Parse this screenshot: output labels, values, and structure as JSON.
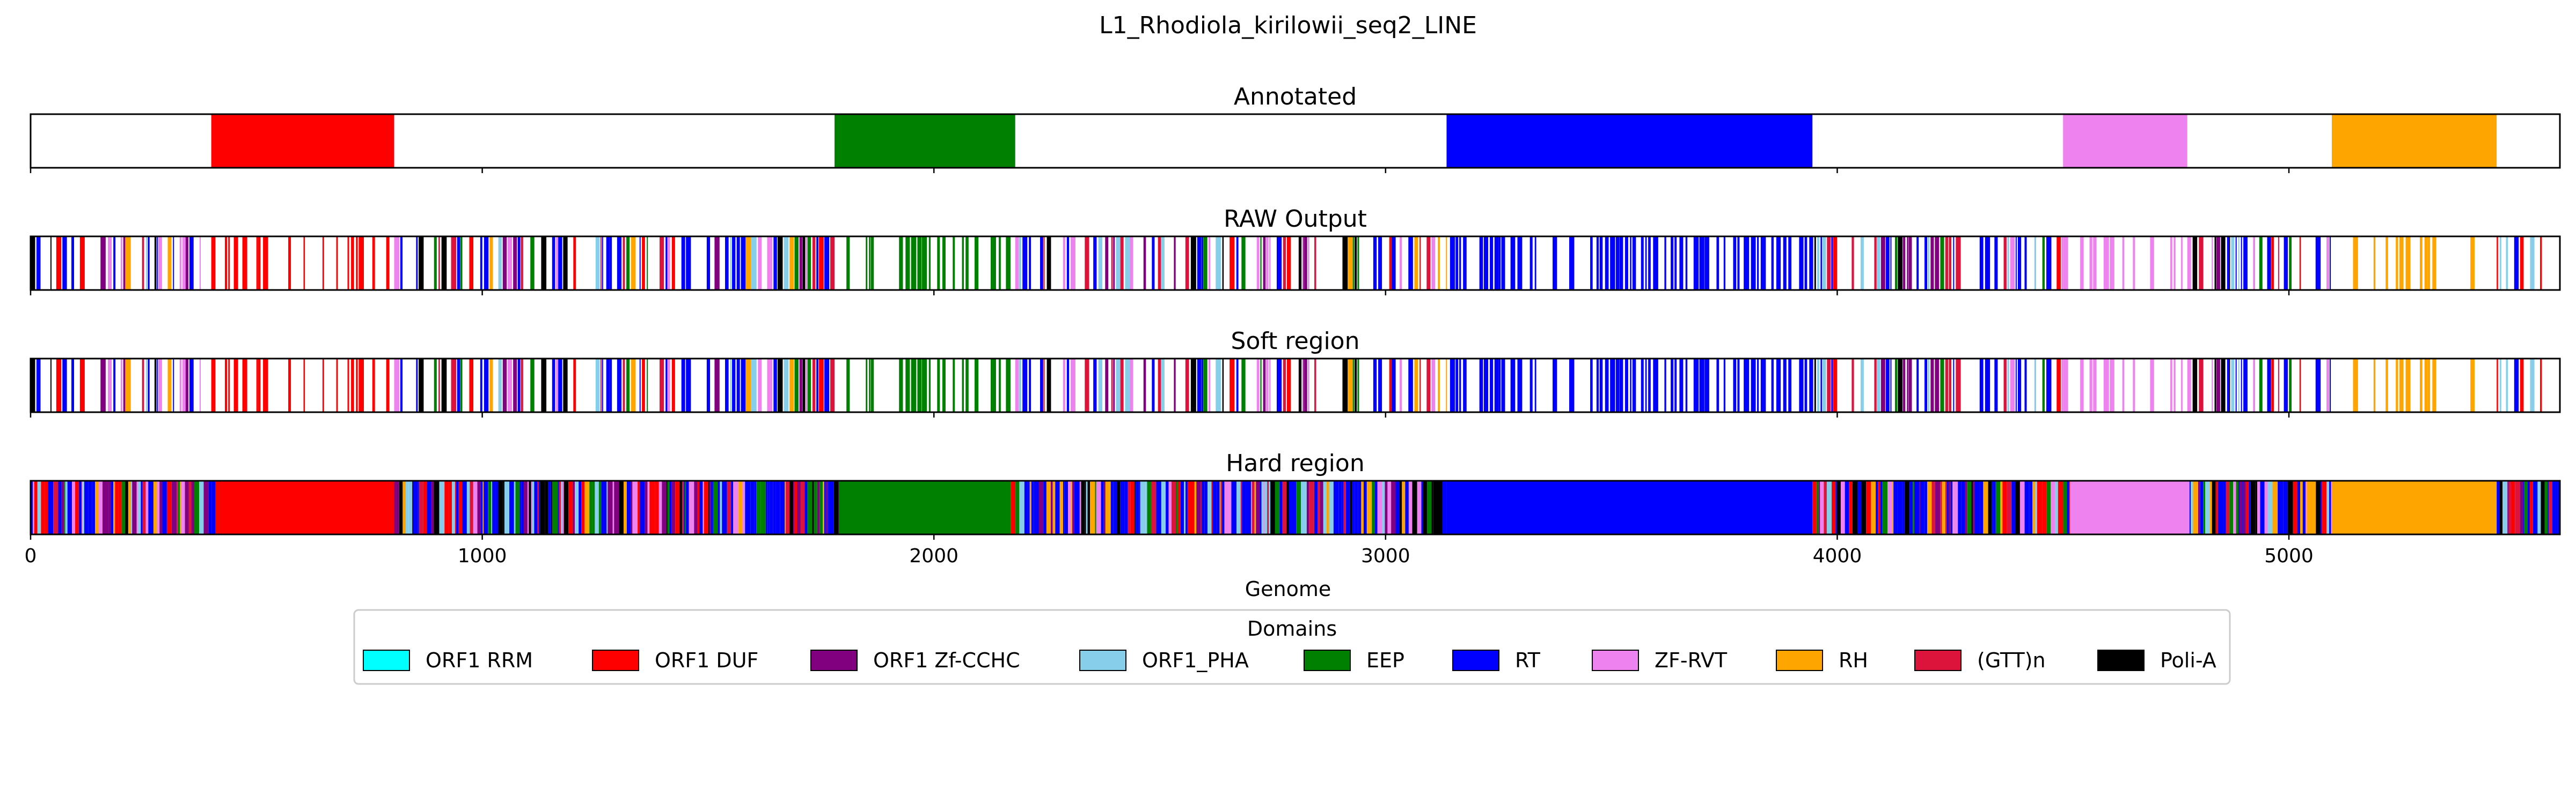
{
  "chart_data": {
    "type": "bar",
    "title": "L1_Rhodiola_kirilowii_seq2_LINE",
    "xlabel": "Genome",
    "xlim": [
      0,
      5600
    ],
    "xticks": [
      0,
      1000,
      2000,
      3000,
      4000,
      5000
    ],
    "xtick_labels": [
      "0",
      "1000",
      "2000",
      "3000",
      "4000",
      "5000"
    ],
    "legend": {
      "title": "Domains",
      "placement": "bottom-center",
      "entries": [
        {
          "label": "ORF1 RRM",
          "color": "#00ffff"
        },
        {
          "label": "ORF1 DUF",
          "color": "#ff0000"
        },
        {
          "label": "ORF1 Zf-CCHC",
          "color": "#800080"
        },
        {
          "label": "ORF1_PHA",
          "color": "#87ceeb"
        },
        {
          "label": "EEP",
          "color": "#008000"
        },
        {
          "label": "RT",
          "color": "#0000ff"
        },
        {
          "label": "ZF-RVT",
          "color": "#ee82ee"
        },
        {
          "label": "RH",
          "color": "#ffa500"
        },
        {
          "label": "(GTT)n",
          "color": "#dc143c"
        },
        {
          "label": "Poli-A",
          "color": "#000000"
        }
      ]
    },
    "panels": [
      {
        "title": "Annotated",
        "segments": [
          {
            "start": 400,
            "end": 805,
            "domain": "ORF1 DUF"
          },
          {
            "start": 1780,
            "end": 2180,
            "domain": "EEP"
          },
          {
            "start": 3135,
            "end": 3945,
            "domain": "RT"
          },
          {
            "start": 4500,
            "end": 4775,
            "domain": "ZF-RVT"
          },
          {
            "start": 5095,
            "end": 5460,
            "domain": "RH"
          }
        ]
      },
      {
        "title": "RAW Output",
        "fill": "sparse",
        "regions": [
          {
            "start": 0,
            "end": 400,
            "main": "mixed",
            "density": 0.55
          },
          {
            "start": 400,
            "end": 805,
            "main": "ORF1 DUF",
            "density": 0.45
          },
          {
            "start": 805,
            "end": 1780,
            "main": "mixed",
            "density": 0.55
          },
          {
            "start": 1780,
            "end": 2180,
            "main": "EEP",
            "density": 0.5
          },
          {
            "start": 2180,
            "end": 3135,
            "main": "mixed",
            "density": 0.6
          },
          {
            "start": 3135,
            "end": 3945,
            "main": "RT",
            "density": 0.6
          },
          {
            "start": 3945,
            "end": 4500,
            "main": "mixed",
            "density": 0.6
          },
          {
            "start": 4500,
            "end": 4775,
            "main": "ZF-RVT",
            "density": 0.4
          },
          {
            "start": 4775,
            "end": 5095,
            "main": "mixed",
            "density": 0.6
          },
          {
            "start": 5095,
            "end": 5460,
            "main": "RH",
            "density": 0.4
          },
          {
            "start": 5460,
            "end": 5600,
            "main": "mixed",
            "density": 0.6
          }
        ]
      },
      {
        "title": "Soft region",
        "fill": "sparse",
        "regions": [
          {
            "start": 0,
            "end": 400,
            "main": "mixed",
            "density": 0.55
          },
          {
            "start": 400,
            "end": 805,
            "main": "ORF1 DUF",
            "density": 0.45
          },
          {
            "start": 805,
            "end": 1780,
            "main": "mixed",
            "density": 0.55
          },
          {
            "start": 1780,
            "end": 2180,
            "main": "EEP",
            "density": 0.5
          },
          {
            "start": 2180,
            "end": 3135,
            "main": "mixed",
            "density": 0.6
          },
          {
            "start": 3135,
            "end": 3945,
            "main": "RT",
            "density": 0.6
          },
          {
            "start": 3945,
            "end": 4500,
            "main": "mixed",
            "density": 0.6
          },
          {
            "start": 4500,
            "end": 4775,
            "main": "ZF-RVT",
            "density": 0.4
          },
          {
            "start": 4775,
            "end": 5095,
            "main": "mixed",
            "density": 0.6
          },
          {
            "start": 5095,
            "end": 5460,
            "main": "RH",
            "density": 0.4
          },
          {
            "start": 5460,
            "end": 5600,
            "main": "mixed",
            "density": 0.6
          }
        ]
      },
      {
        "title": "Hard region",
        "fill": "solid",
        "regions": [
          {
            "start": 0,
            "end": 410,
            "main": "mixed"
          },
          {
            "start": 410,
            "end": 805,
            "main": "ORF1 DUF"
          },
          {
            "start": 805,
            "end": 1790,
            "main": "mixed"
          },
          {
            "start": 1790,
            "end": 2170,
            "main": "EEP"
          },
          {
            "start": 2170,
            "end": 3135,
            "main": "mixed"
          },
          {
            "start": 3135,
            "end": 3945,
            "main": "RT"
          },
          {
            "start": 3945,
            "end": 4515,
            "main": "mixed"
          },
          {
            "start": 4515,
            "end": 4780,
            "main": "ZF-RVT"
          },
          {
            "start": 4780,
            "end": 5095,
            "main": "mixed"
          },
          {
            "start": 5095,
            "end": 5460,
            "main": "RH"
          },
          {
            "start": 5460,
            "end": 5600,
            "main": "mixed"
          }
        ]
      }
    ]
  }
}
